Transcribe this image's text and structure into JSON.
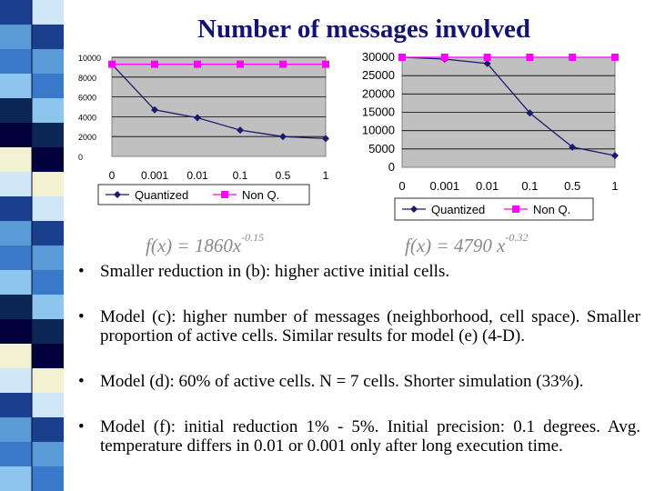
{
  "slide": {
    "title": "Number of messages involved",
    "formula_left": {
      "base": "f(x) = 1860x",
      "exponent": "-0.15"
    },
    "formula_right": {
      "base": "f(x) = 4790 x",
      "exponent": "-0.32"
    },
    "bullets": [
      "Smaller reduction in (b): higher active initial cells.",
      "Model (c): higher number of messages (neighborhood, cell space). Smaller proportion of active cells. Similar results for model (e) (4-D).",
      "Model (d): 60% of active cells. N = 7 cells. Shorter simulation (33%).",
      "Model (f): initial reduction 1% - 5%. Initial precision: 0.1 degrees. Avg. temperature differs in 0.01 or 0.001 only after long execution time."
    ],
    "bullet_glyph": "•"
  },
  "colors": {
    "plot_bg": "#c0c0c0",
    "quantized": "#1a1a6e",
    "nonq": "#ff00ff",
    "title": "#14146e"
  },
  "chart_data": [
    {
      "type": "line",
      "title": "",
      "categories": [
        "0",
        "0.001",
        "0.01",
        "0.1",
        "0.5",
        "1"
      ],
      "series": [
        {
          "name": "Quantized",
          "values": [
            9300,
            4700,
            3900,
            2650,
            2000,
            1800
          ]
        },
        {
          "name": "Non Q.",
          "values": [
            9300,
            9300,
            9300,
            9300,
            9300,
            9300
          ]
        }
      ],
      "yticks": [
        0,
        2000,
        4000,
        6000,
        8000,
        10000
      ],
      "ylim": [
        0,
        10000
      ],
      "legend": "bottom"
    },
    {
      "type": "line",
      "title": "",
      "categories": [
        "0",
        "0.001",
        "0.01",
        "0.1",
        "0.5",
        "1"
      ],
      "series": [
        {
          "name": "Quantized",
          "values": [
            30000,
            29500,
            28300,
            14800,
            5500,
            3200
          ]
        },
        {
          "name": "Non Q.",
          "values": [
            30000,
            30000,
            30000,
            30000,
            30000,
            30000
          ]
        }
      ],
      "yticks": [
        0,
        5000,
        10000,
        15000,
        20000,
        25000,
        30000
      ],
      "ylim": [
        0,
        30000
      ],
      "legend": "bottom"
    }
  ]
}
